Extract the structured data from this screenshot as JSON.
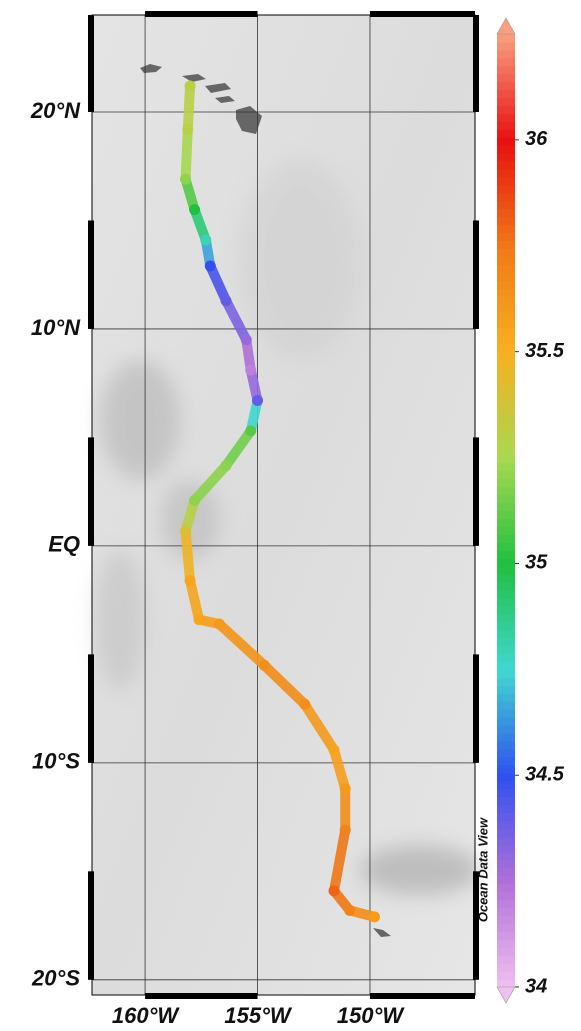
{
  "chart_data": {
    "type": "map",
    "xlim": [
      -162.36,
      -145.33
    ],
    "ylim": [
      -20.7,
      24.47
    ],
    "xticks": [
      {
        "value": -160,
        "label": "160°W"
      },
      {
        "value": -155,
        "label": "155°W"
      },
      {
        "value": -150,
        "label": "150°W"
      }
    ],
    "yticks": [
      {
        "value": 20,
        "label": "20°N"
      },
      {
        "value": 10,
        "label": "10°N"
      },
      {
        "value": 0,
        "label": "EQ"
      },
      {
        "value": -10,
        "label": "10°S"
      },
      {
        "value": -20,
        "label": "20°S"
      }
    ],
    "grid": true,
    "track": {
      "lon": [
        -158.0,
        -158.1,
        -158.2,
        -157.8,
        -157.3,
        -157.1,
        -156.4,
        -155.5,
        -155.3,
        -155.0,
        -155.3,
        -156.4,
        -157.8,
        -158.2,
        -158.0,
        -157.6,
        -156.7,
        -154.7,
        -152.9,
        -151.6,
        -151.1,
        -151.1,
        -151.6,
        -150.9,
        -149.8
      ],
      "lat": [
        21.2,
        19.2,
        16.9,
        15.5,
        14.1,
        12.9,
        11.3,
        9.5,
        8.1,
        6.7,
        5.3,
        3.7,
        2.1,
        0.7,
        -1.6,
        -3.4,
        -3.6,
        -5.5,
        -7.3,
        -9.4,
        -11.2,
        -13.1,
        -15.9,
        -16.8,
        -17.1
      ],
      "salinity": [
        35.3,
        35.3,
        35.2,
        35.0,
        34.8,
        34.5,
        34.4,
        34.3,
        34.2,
        34.4,
        35.1,
        35.2,
        35.2,
        35.4,
        35.55,
        35.55,
        35.6,
        35.65,
        35.65,
        35.55,
        35.6,
        35.7,
        35.8,
        35.7,
        35.6
      ]
    },
    "colorbar": {
      "clim": [
        34,
        36.25
      ],
      "ticks": [
        34,
        34.5,
        35,
        35.5,
        36
      ],
      "colormap": [
        "#f0c0f0",
        "#b070d8",
        "#3050f0",
        "#40d8d0",
        "#20c040",
        "#a8d850",
        "#f8b020",
        "#f07818",
        "#e81010",
        "#f8a080"
      ],
      "label": "Ocean Data View"
    }
  }
}
